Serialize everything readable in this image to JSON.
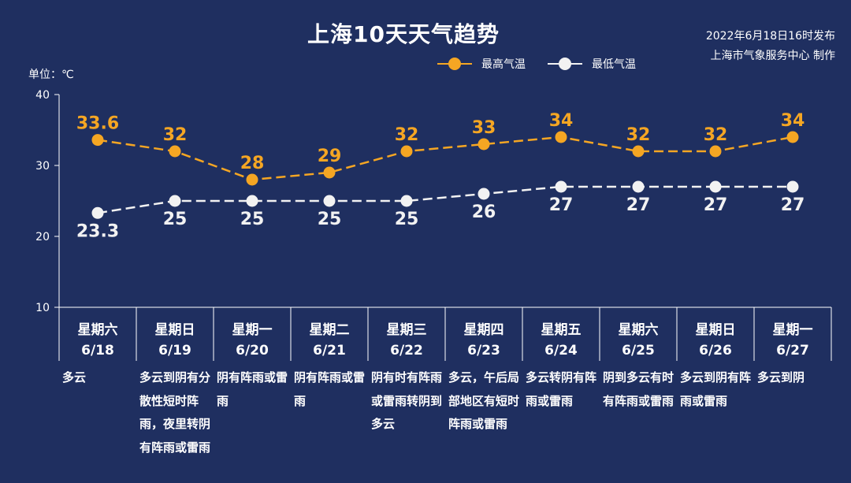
{
  "header": {
    "title": "上海10天天气趋势",
    "publish_line1": "2022年6月18日16时发布",
    "publish_line2": "上海市气象服务中心 制作",
    "unit": "单位：℃"
  },
  "colors": {
    "background": "#1f2f60",
    "max_series": "#f5a623",
    "min_series": "#f2f2f2",
    "axis": "#ffffff"
  },
  "days": [
    {
      "week": "星期六",
      "date": "6/18",
      "desc": "多云"
    },
    {
      "week": "星期日",
      "date": "6/19",
      "desc": "多云到阴有分散性短时阵雨，夜里转阴有阵雨或雷雨"
    },
    {
      "week": "星期一",
      "date": "6/20",
      "desc": "阴有阵雨或雷雨"
    },
    {
      "week": "星期二",
      "date": "6/21",
      "desc": "阴有阵雨或雷雨"
    },
    {
      "week": "星期三",
      "date": "6/22",
      "desc": "阴有时有阵雨或雷雨转阴到多云"
    },
    {
      "week": "星期四",
      "date": "6/23",
      "desc": "多云，午后局部地区有短时阵雨或雷雨"
    },
    {
      "week": "星期五",
      "date": "6/24",
      "desc": "多云转阴有阵雨或雷雨"
    },
    {
      "week": "星期六",
      "date": "6/25",
      "desc": "阴到多云有时有阵雨或雷雨"
    },
    {
      "week": "星期日",
      "date": "6/26",
      "desc": "多云到阴有阵雨或雷雨"
    },
    {
      "week": "星期一",
      "date": "6/27",
      "desc": "多云到阴"
    }
  ],
  "chart_data": {
    "type": "line",
    "title": "上海10天天气趋势",
    "ylabel": "单位：℃",
    "ylim": [
      10,
      40
    ],
    "yticks": [
      10,
      20,
      30,
      40
    ],
    "categories": [
      "6/18",
      "6/19",
      "6/20",
      "6/21",
      "6/22",
      "6/23",
      "6/24",
      "6/25",
      "6/26",
      "6/27"
    ],
    "legend_position": "top-right",
    "series": [
      {
        "name": "最高气温",
        "values": [
          33.6,
          32,
          28,
          29,
          32,
          33,
          34,
          32,
          32,
          34
        ],
        "labels": [
          "33.6",
          "32",
          "28",
          "29",
          "32",
          "33",
          "34",
          "32",
          "32",
          "34"
        ],
        "color": "#f5a623",
        "line_style": "dashed",
        "label_position": "above"
      },
      {
        "name": "最低气温",
        "values": [
          23.3,
          25,
          25,
          25,
          25,
          26,
          27,
          27,
          27,
          27
        ],
        "labels": [
          "23.3",
          "25",
          "25",
          "25",
          "25",
          "26",
          "27",
          "27",
          "27",
          "27"
        ],
        "color": "#f2f2f2",
        "line_style": "dashed",
        "label_position": "below"
      }
    ]
  }
}
